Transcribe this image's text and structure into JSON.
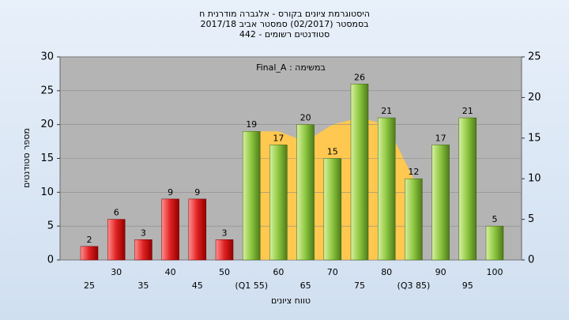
{
  "chart_data": {
    "type": "bar",
    "title": "היסטוגרמת ציונים בקורס - אלגברה מודרנית ח",
    "subtitle": "בסמסטר  (02/2017)  סמסטר אביב 2017/18",
    "subtitle2": "סטודנטים רשומים - 442",
    "annotation": "במשימה : Final_A",
    "x_label": "טווח ציונים",
    "y_label": "מספר סטודנטים",
    "categories": [
      "25",
      "30",
      "35",
      "40",
      "45",
      "50",
      "(Q1 55)",
      "60",
      "65",
      "70",
      "75",
      "80",
      "(Q3 85)",
      "90",
      "95",
      "100"
    ],
    "values": [
      2,
      6,
      3,
      9,
      9,
      3,
      19,
      17,
      20,
      15,
      26,
      21,
      12,
      17,
      21,
      5
    ],
    "colors": [
      "#e02020",
      "#e02020",
      "#e02020",
      "#e02020",
      "#e02020",
      "#e02020",
      "#8cc63f",
      "#8cc63f",
      "#8cc63f",
      "#8cc63f",
      "#8cc63f",
      "#8cc63f",
      "#8cc63f",
      "#8cc63f",
      "#8cc63f",
      "#8cc63f"
    ],
    "area": {
      "color": "#ffc850",
      "values": [
        null,
        null,
        null,
        null,
        null,
        null,
        19,
        19,
        17.5,
        20,
        21,
        20,
        12,
        null,
        null,
        null
      ]
    },
    "ylim": [
      0,
      30
    ],
    "yticks": [
      0,
      5,
      10,
      15,
      20,
      25,
      30
    ],
    "y2lim": [
      0,
      25
    ],
    "y2ticks": [
      0,
      5,
      10,
      15,
      20,
      25
    ],
    "grid": true
  }
}
